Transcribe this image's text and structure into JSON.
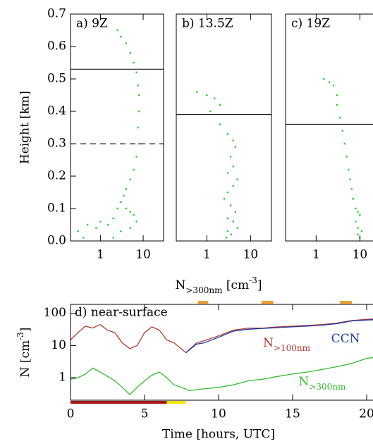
{
  "chart_data": [
    {
      "type": "scatter",
      "title": "a) 9Z",
      "color": "#33cc33",
      "log_x": true,
      "xlim": [
        0.2,
        30
      ],
      "ylim": [
        0,
        0.7
      ],
      "xticks": [
        1,
        10
      ],
      "yticks": [
        {
          "value": 0,
          "label": "0.0"
        },
        0.1,
        0.2,
        0.3,
        0.4,
        0.5,
        0.6,
        0.7
      ],
      "ylabel": "Height [km]",
      "hlines": [
        {
          "value": 0.53,
          "style": "solid"
        },
        {
          "value": 0.3,
          "style": "dashed"
        }
      ],
      "x": [
        2.5,
        3,
        4,
        5,
        6,
        7,
        7.5,
        8,
        8,
        7.5,
        8,
        7,
        6,
        5,
        4,
        3.5,
        3,
        2.5,
        4,
        5,
        6,
        2,
        1,
        0.5,
        0.3,
        0.8,
        1.5,
        3,
        5,
        7,
        0.4,
        2
      ],
      "y": [
        0.65,
        0.63,
        0.61,
        0.58,
        0.55,
        0.52,
        0.48,
        0.45,
        0.4,
        0.35,
        0.3,
        0.26,
        0.22,
        0.19,
        0.16,
        0.14,
        0.12,
        0.1,
        0.1,
        0.09,
        0.08,
        0.07,
        0.06,
        0.05,
        0.03,
        0.04,
        0.05,
        0.03,
        0.04,
        0.06,
        0.01,
        0.01
      ]
    },
    {
      "type": "scatter",
      "title": "b) 13.5Z",
      "color": "#33cc33",
      "log_x": true,
      "xlim": [
        0.2,
        30
      ],
      "ylim": [
        0,
        0.7
      ],
      "xticks": [
        1,
        10
      ],
      "xlabel": [
        "N",
        ">300nm",
        " [cm",
        "-3",
        "]"
      ],
      "xlabel_shift": [
        "",
        "sub",
        "",
        "super",
        ""
      ],
      "hlines": [
        {
          "value": 0.39,
          "style": "solid"
        }
      ],
      "x": [
        0.6,
        1,
        1.5,
        2,
        1.2,
        2,
        3,
        4,
        4.5,
        3.5,
        4,
        3,
        5,
        4,
        3,
        2.5,
        3.5,
        4.5,
        3,
        4,
        5,
        3,
        2.8,
        3.6
      ],
      "y": [
        0.46,
        0.45,
        0.44,
        0.42,
        0.4,
        0.36,
        0.33,
        0.31,
        0.29,
        0.26,
        0.23,
        0.21,
        0.19,
        0.17,
        0.15,
        0.13,
        0.11,
        0.09,
        0.07,
        0.06,
        0.04,
        0.03,
        0.01,
        0.02
      ]
    },
    {
      "type": "scatter",
      "title": "c) 19Z",
      "color": "#33cc33",
      "log_x": true,
      "xlim": [
        0.2,
        30
      ],
      "ylim": [
        0,
        0.7
      ],
      "xticks": [
        1,
        10
      ],
      "hlines": [
        {
          "value": 0.36,
          "style": "solid"
        }
      ],
      "x": [
        1.5,
        2,
        2.5,
        3,
        3,
        3.5,
        4,
        4.5,
        5,
        5.5,
        6,
        6.5,
        7,
        8,
        9,
        10,
        8,
        9,
        11,
        10,
        9
      ],
      "y": [
        0.5,
        0.49,
        0.48,
        0.45,
        0.42,
        0.38,
        0.34,
        0.3,
        0.26,
        0.22,
        0.19,
        0.16,
        0.13,
        0.1,
        0.09,
        0.08,
        0.06,
        0.04,
        0.03,
        0.01,
        0.02
      ]
    },
    {
      "type": "line",
      "title": "d) near-surface",
      "log_y": true,
      "xlim": [
        0,
        21
      ],
      "ylim": [
        0.2,
        190
      ],
      "xticks": [
        0,
        5,
        10,
        15,
        20
      ],
      "yticks": [
        1,
        10,
        100
      ],
      "xlabel": "Time [hours, UTC]",
      "ylabel": [
        "N [cm",
        "-3",
        "]"
      ],
      "ylabel_shift": [
        "",
        "super",
        ""
      ],
      "series": [
        {
          "name": "N",
          "name_sub": ">100nm",
          "color": "#b03a2e",
          "x": [
            0,
            0.5,
            1,
            1.5,
            2,
            2.5,
            3,
            3.5,
            4,
            4.5,
            5,
            5.5,
            6,
            6.5,
            7,
            7.8,
            8.5,
            9,
            10,
            11,
            12,
            13,
            14,
            15,
            16,
            17,
            18,
            19,
            20,
            21
          ],
          "values": [
            15,
            25,
            40,
            35,
            45,
            30,
            25,
            12,
            8,
            10,
            25,
            38,
            30,
            15,
            12,
            6,
            12,
            14,
            20,
            30,
            35,
            35,
            38,
            40,
            42,
            45,
            50,
            60,
            65,
            70
          ]
        },
        {
          "name": "CCN",
          "color": "#1f3aa8",
          "x": [
            7.8,
            8.5,
            9,
            10,
            11,
            12,
            13,
            14,
            15,
            16,
            17,
            18,
            19,
            20,
            21
          ],
          "values": [
            6,
            11,
            12,
            18,
            28,
            32,
            34,
            36,
            38,
            40,
            43,
            48,
            58,
            62,
            65
          ]
        },
        {
          "name": "N",
          "name_sub": ">300nm",
          "color": "#33bb33",
          "x": [
            0,
            0.5,
            1,
            1.5,
            2,
            2.5,
            3,
            3.5,
            4,
            4.5,
            5,
            5.5,
            6,
            6.5,
            7,
            7.5,
            8,
            9,
            10,
            11,
            12,
            13,
            14,
            15,
            16,
            17,
            18,
            19,
            20,
            21
          ],
          "values": [
            0.9,
            1,
            1.3,
            2,
            1.5,
            1.1,
            0.8,
            0.5,
            0.3,
            0.5,
            0.8,
            1.2,
            1.5,
            1,
            0.6,
            0.5,
            0.4,
            0.45,
            0.5,
            0.6,
            0.8,
            0.9,
            1.1,
            1.3,
            1.5,
            1.8,
            2.2,
            2.8,
            4,
            4.5
          ]
        }
      ],
      "periods": [
        {
          "start": 0,
          "end": 6.5,
          "color": "#a01818",
          "row": "bottom"
        },
        {
          "start": 6.5,
          "end": 7.8,
          "color": "#f2e600",
          "row": "bottom"
        },
        {
          "start": 8.6,
          "end": 9.3,
          "color": "#f0a030",
          "row": "top"
        },
        {
          "start": 12.9,
          "end": 13.7,
          "color": "#f0a030",
          "row": "top"
        },
        {
          "start": 18.2,
          "end": 19.0,
          "color": "#f0a030",
          "row": "top"
        }
      ]
    }
  ]
}
